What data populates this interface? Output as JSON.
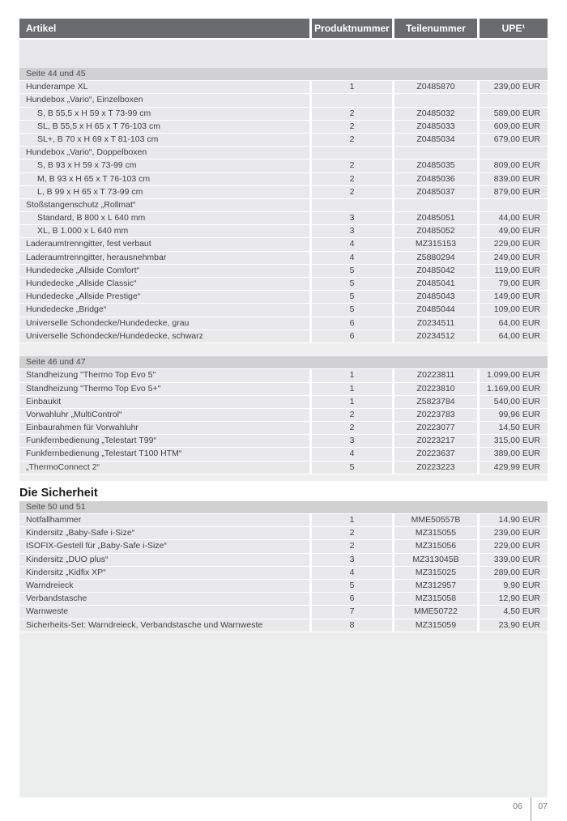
{
  "table": {
    "columns": [
      "Artikel",
      "Produktnummer",
      "Teilenummer",
      "UPE¹"
    ],
    "groups": [
      {
        "page_label": "Seite 44 und 45",
        "rows": [
          {
            "artikel": "Hunderampe XL",
            "produktnummer": "1",
            "teilenummer": "Z0485870",
            "upe": "239,00 EUR"
          },
          {
            "artikel": "Hundebox „Vario“, Einzelboxen",
            "label_only": true
          },
          {
            "artikel": "S, B 55,5 x H 59 x T 73-99 cm",
            "indent": true,
            "produktnummer": "2",
            "teilenummer": "Z0485032",
            "upe": "589,00 EUR"
          },
          {
            "artikel": "SL, B 55,5 x H 65 x T 76-103 cm",
            "indent": true,
            "produktnummer": "2",
            "teilenummer": "Z0485033",
            "upe": "609,00 EUR"
          },
          {
            "artikel": "SL+, B 70 x H 69 x T 81-103 cm",
            "indent": true,
            "produktnummer": "2",
            "teilenummer": "Z0485034",
            "upe": "679,00 EUR"
          },
          {
            "artikel": "Hundebox „Vario“, Doppelboxen",
            "label_only": true
          },
          {
            "artikel": "S, B 93 x H 59 x 73-99 cm",
            "indent": true,
            "produktnummer": "2",
            "teilenummer": "Z0485035",
            "upe": "809,00 EUR"
          },
          {
            "artikel": "M, B 93 x H 65 x T 76-103 cm",
            "indent": true,
            "produktnummer": "2",
            "teilenummer": "Z0485036",
            "upe": "839,00 EUR"
          },
          {
            "artikel": "L, B 99 x H 65 x T 73-99 cm",
            "indent": true,
            "produktnummer": "2",
            "teilenummer": "Z0485037",
            "upe": "879,00 EUR"
          },
          {
            "artikel": "Stoßstangenschutz „Rollmat“",
            "label_only": true
          },
          {
            "artikel": "Standard, B 800 x L 640 mm",
            "indent": true,
            "produktnummer": "3",
            "teilenummer": "Z0485051",
            "upe": "44,00 EUR"
          },
          {
            "artikel": "XL, B 1.000 x L 640 mm",
            "indent": true,
            "produktnummer": "3",
            "teilenummer": "Z0485052",
            "upe": "49,00 EUR"
          },
          {
            "artikel": "Laderaumtrenngitter, fest verbaut",
            "produktnummer": "4",
            "teilenummer": "MZ315153",
            "upe": "229,00 EUR"
          },
          {
            "artikel": "Laderaumtrenngitter, herausnehmbar",
            "produktnummer": "4",
            "teilenummer": "Z5880294",
            "upe": "249,00 EUR"
          },
          {
            "artikel": "Hundedecke „Allside Comfort“",
            "produktnummer": "5",
            "teilenummer": "Z0485042",
            "upe": "119,00 EUR"
          },
          {
            "artikel": "Hundedecke „Allside Classic“",
            "produktnummer": "5",
            "teilenummer": "Z0485041",
            "upe": "79,00 EUR"
          },
          {
            "artikel": "Hundedecke „Allside Prestige“",
            "produktnummer": "5",
            "teilenummer": "Z0485043",
            "upe": "149,00 EUR"
          },
          {
            "artikel": "Hundedecke „Bridge“",
            "produktnummer": "5",
            "teilenummer": "Z0485044",
            "upe": "109,00 EUR"
          },
          {
            "artikel": "Universelle Schondecke/Hundedecke, grau",
            "produktnummer": "6",
            "teilenummer": "Z0234511",
            "upe": "64,00 EUR"
          },
          {
            "artikel": "Universelle Schondecke/Hundedecke, schwarz",
            "produktnummer": "6",
            "teilenummer": "Z0234512",
            "upe": "64,00 EUR"
          }
        ]
      },
      {
        "page_label": "Seite 46 und 47",
        "rows": [
          {
            "artikel": "Standheizung \"Thermo Top Evo 5\"",
            "produktnummer": "1",
            "teilenummer": "Z0223811",
            "upe": "1.099,00 EUR"
          },
          {
            "artikel": "Standheizung \"Thermo Top Evo 5+\"",
            "produktnummer": "1",
            "teilenummer": "Z0223810",
            "upe": "1.169,00 EUR"
          },
          {
            "artikel": "Einbaukit",
            "produktnummer": "1",
            "teilenummer": "Z5823784",
            "upe": "540,00 EUR"
          },
          {
            "artikel": "Vorwahluhr „MultiControl“",
            "produktnummer": "2",
            "teilenummer": "Z0223783",
            "upe": "99,96 EUR"
          },
          {
            "artikel": "Einbaurahmen für Vorwahluhr",
            "produktnummer": "2",
            "teilenummer": "Z0223077",
            "upe": "14,50 EUR"
          },
          {
            "artikel": "Funkfernbedienung „Telestart T99“",
            "produktnummer": "3",
            "teilenummer": "Z0223217",
            "upe": "315,00 EUR"
          },
          {
            "artikel": "Funkfernbedienung „Telestart T100 HTM“",
            "produktnummer": "4",
            "teilenummer": "Z0223637",
            "upe": "389,00 EUR"
          },
          {
            "artikel": "„ThermoConnect 2“",
            "produktnummer": "5",
            "teilenummer": "Z0223223",
            "upe": "429,99 EUR"
          }
        ]
      },
      {
        "heading": "Die Sicherheit",
        "page_label": "Seite 50 und 51",
        "rows": [
          {
            "artikel": "Notfallhammer",
            "produktnummer": "1",
            "teilenummer": "MME50557B",
            "upe": "14,90 EUR"
          },
          {
            "artikel": "Kindersitz „Baby-Safe i-Size“",
            "produktnummer": "2",
            "teilenummer": "MZ315055",
            "upe": "239,00 EUR"
          },
          {
            "artikel": "ISOFIX-Gestell für „Baby-Safe i-Size“",
            "produktnummer": "2",
            "teilenummer": "MZ315056",
            "upe": "229,00 EUR"
          },
          {
            "artikel": "Kindersitz „DUO plus“",
            "produktnummer": "3",
            "teilenummer": "MZ313045B",
            "upe": "339,00 EUR"
          },
          {
            "artikel": "Kindersitz „Kidfix XP“",
            "produktnummer": "4",
            "teilenummer": "MZ315025",
            "upe": "289,00 EUR"
          },
          {
            "artikel": "Warndreieck",
            "produktnummer": "5",
            "teilenummer": "MZ312957",
            "upe": "9,90 EUR"
          },
          {
            "artikel": "Verbandstasche",
            "produktnummer": "6",
            "teilenummer": "MZ315058",
            "upe": "12,90 EUR"
          },
          {
            "artikel": "Warnweste",
            "produktnummer": "7",
            "teilenummer": "MME50722",
            "upe": "4,50 EUR"
          },
          {
            "artikel": "Sicherheits-Set: Warndreieck, Verbandstasche und Warnweste",
            "produktnummer": "8",
            "teilenummer": "MZ315059",
            "upe": "23,90 EUR"
          }
        ]
      }
    ]
  },
  "footer": {
    "page_left": "06",
    "page_right": "07"
  }
}
